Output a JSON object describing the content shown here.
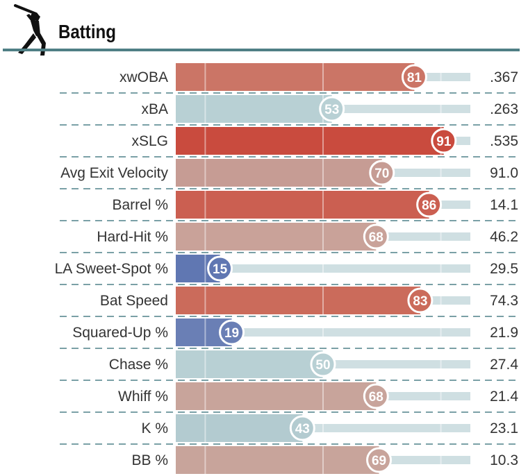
{
  "header": {
    "title": "Batting",
    "icon": "batter-silhouette-icon"
  },
  "colors": {
    "rule": "#4f7f85",
    "track": "#cfdfe2",
    "divider": "#4f8088"
  },
  "chart_data": {
    "type": "bar",
    "orientation": "horizontal",
    "title": "Batting",
    "percentile_range": [
      0,
      100
    ],
    "categories": [
      "xwOBA",
      "xBA",
      "xSLG",
      "Avg Exit Velocity",
      "Barrel %",
      "Hard-Hit %",
      "LA Sweet-Spot %",
      "Bat Speed",
      "Squared-Up %",
      "Chase %",
      "Whiff %",
      "K %",
      "BB %"
    ],
    "percentiles": [
      81,
      53,
      91,
      70,
      86,
      68,
      15,
      83,
      19,
      50,
      68,
      43,
      69
    ],
    "values": [
      ".367",
      ".263",
      ".535",
      "91.0",
      "14.1",
      "46.2",
      "29.5",
      "74.3",
      "21.9",
      "27.4",
      "21.4",
      "23.1",
      "10.3"
    ],
    "bar_colors": [
      "#cb7566",
      "#b8d0d4",
      "#c94b3e",
      "#c69c94",
      "#cb5f51",
      "#c9a299",
      "#6077b2",
      "#cb6b5b",
      "#6a7fb5",
      "#b8d0d4",
      "#c8a49b",
      "#b3cbd0",
      "#c8a49b"
    ]
  }
}
